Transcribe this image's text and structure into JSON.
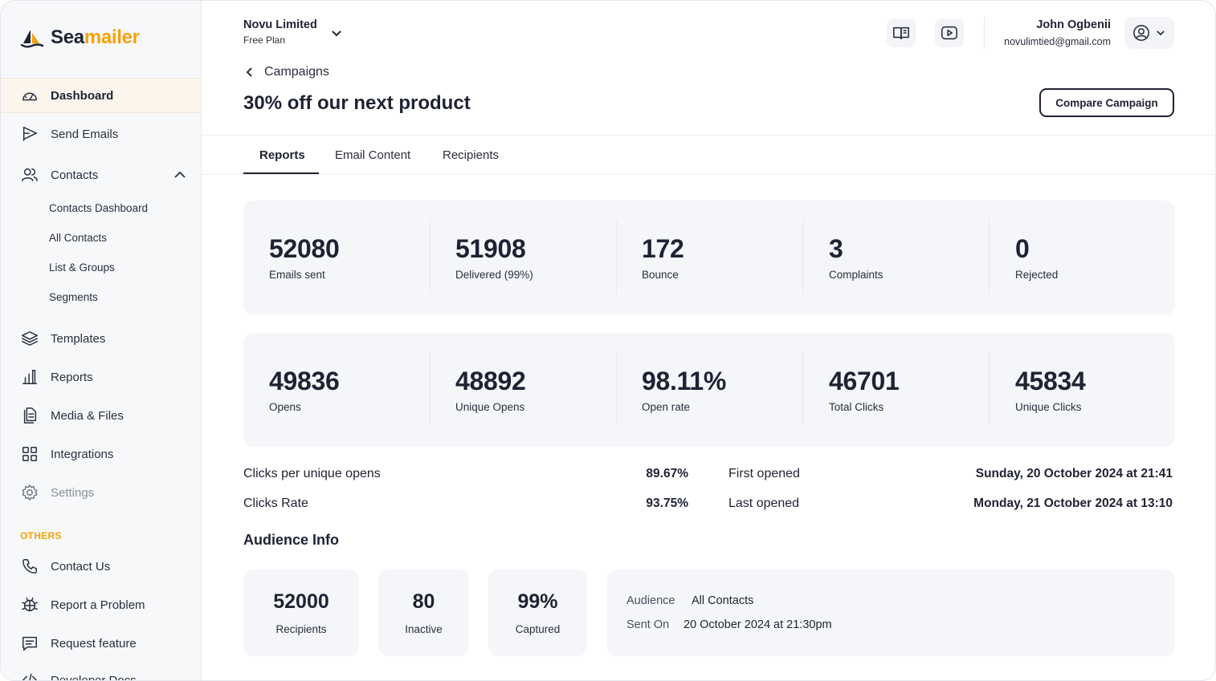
{
  "brand": {
    "name_a": "Sea",
    "name_b": "mailer",
    "accent": "#f5a20b"
  },
  "sidebar": {
    "items": [
      {
        "label": "Dashboard",
        "icon": "gauge-icon"
      },
      {
        "label": "Send Emails",
        "icon": "send-icon"
      },
      {
        "label": "Contacts",
        "icon": "users-icon"
      },
      {
        "label": "Templates",
        "icon": "layers-icon"
      },
      {
        "label": "Reports",
        "icon": "bar-chart-icon"
      },
      {
        "label": "Media & Files",
        "icon": "file-icon"
      },
      {
        "label": "Integrations",
        "icon": "grid-icon"
      },
      {
        "label": "Settings",
        "icon": "gear-icon"
      }
    ],
    "contacts_sub": [
      "Contacts Dashboard",
      "All Contacts",
      "List & Groups",
      "Segments"
    ],
    "others_heading": "OTHERS",
    "others": [
      {
        "label": "Contact Us",
        "icon": "phone-icon"
      },
      {
        "label": "Report a Problem",
        "icon": "bug-icon"
      },
      {
        "label": "Request feature",
        "icon": "message-icon"
      },
      {
        "label": "Developer Docs",
        "icon": "code-icon"
      }
    ]
  },
  "header": {
    "org_name": "Novu Limited",
    "org_plan": "Free Plan",
    "user_name": "John Ogbenii",
    "user_email": "novulimtied@gmail.com"
  },
  "breadcrumb": "Campaigns",
  "page_title": "30% off our next product",
  "compare_label": "Compare Campaign",
  "tabs": [
    "Reports",
    "Email Content",
    "Recipients"
  ],
  "stats_row1": [
    {
      "value": "52080",
      "label": "Emails sent"
    },
    {
      "value": "51908",
      "label": "Delivered (99%)"
    },
    {
      "value": "172",
      "label": "Bounce"
    },
    {
      "value": "3",
      "label": "Complaints"
    },
    {
      "value": "0",
      "label": "Rejected"
    }
  ],
  "stats_row2": [
    {
      "value": "49836",
      "label": "Opens"
    },
    {
      "value": "48892",
      "label": "Unique Opens"
    },
    {
      "value": "98.11%",
      "label": "Open rate"
    },
    {
      "value": "46701",
      "label": "Total Clicks"
    },
    {
      "value": "45834",
      "label": "Unique Clicks"
    }
  ],
  "metrics": [
    {
      "label": "Clicks per unique opens",
      "value": "89.67%"
    },
    {
      "label": "Clicks Rate",
      "value": "93.75%"
    },
    {
      "label": "First opened",
      "value": "Sunday, 20 October 2024 at 21:41"
    },
    {
      "label": "Last opened",
      "value": "Monday, 21 October 2024 at 13:10"
    }
  ],
  "audience": {
    "title": "Audience Info",
    "cards": [
      {
        "value": "52000",
        "label": "Recipients"
      },
      {
        "value": "80",
        "label": "Inactive"
      },
      {
        "value": "99%",
        "label": "Captured"
      }
    ],
    "audience_label": "Audience",
    "audience_value": "All Contacts",
    "sent_label": "Sent On",
    "sent_value": "20 October 2024 at 21:30pm"
  }
}
